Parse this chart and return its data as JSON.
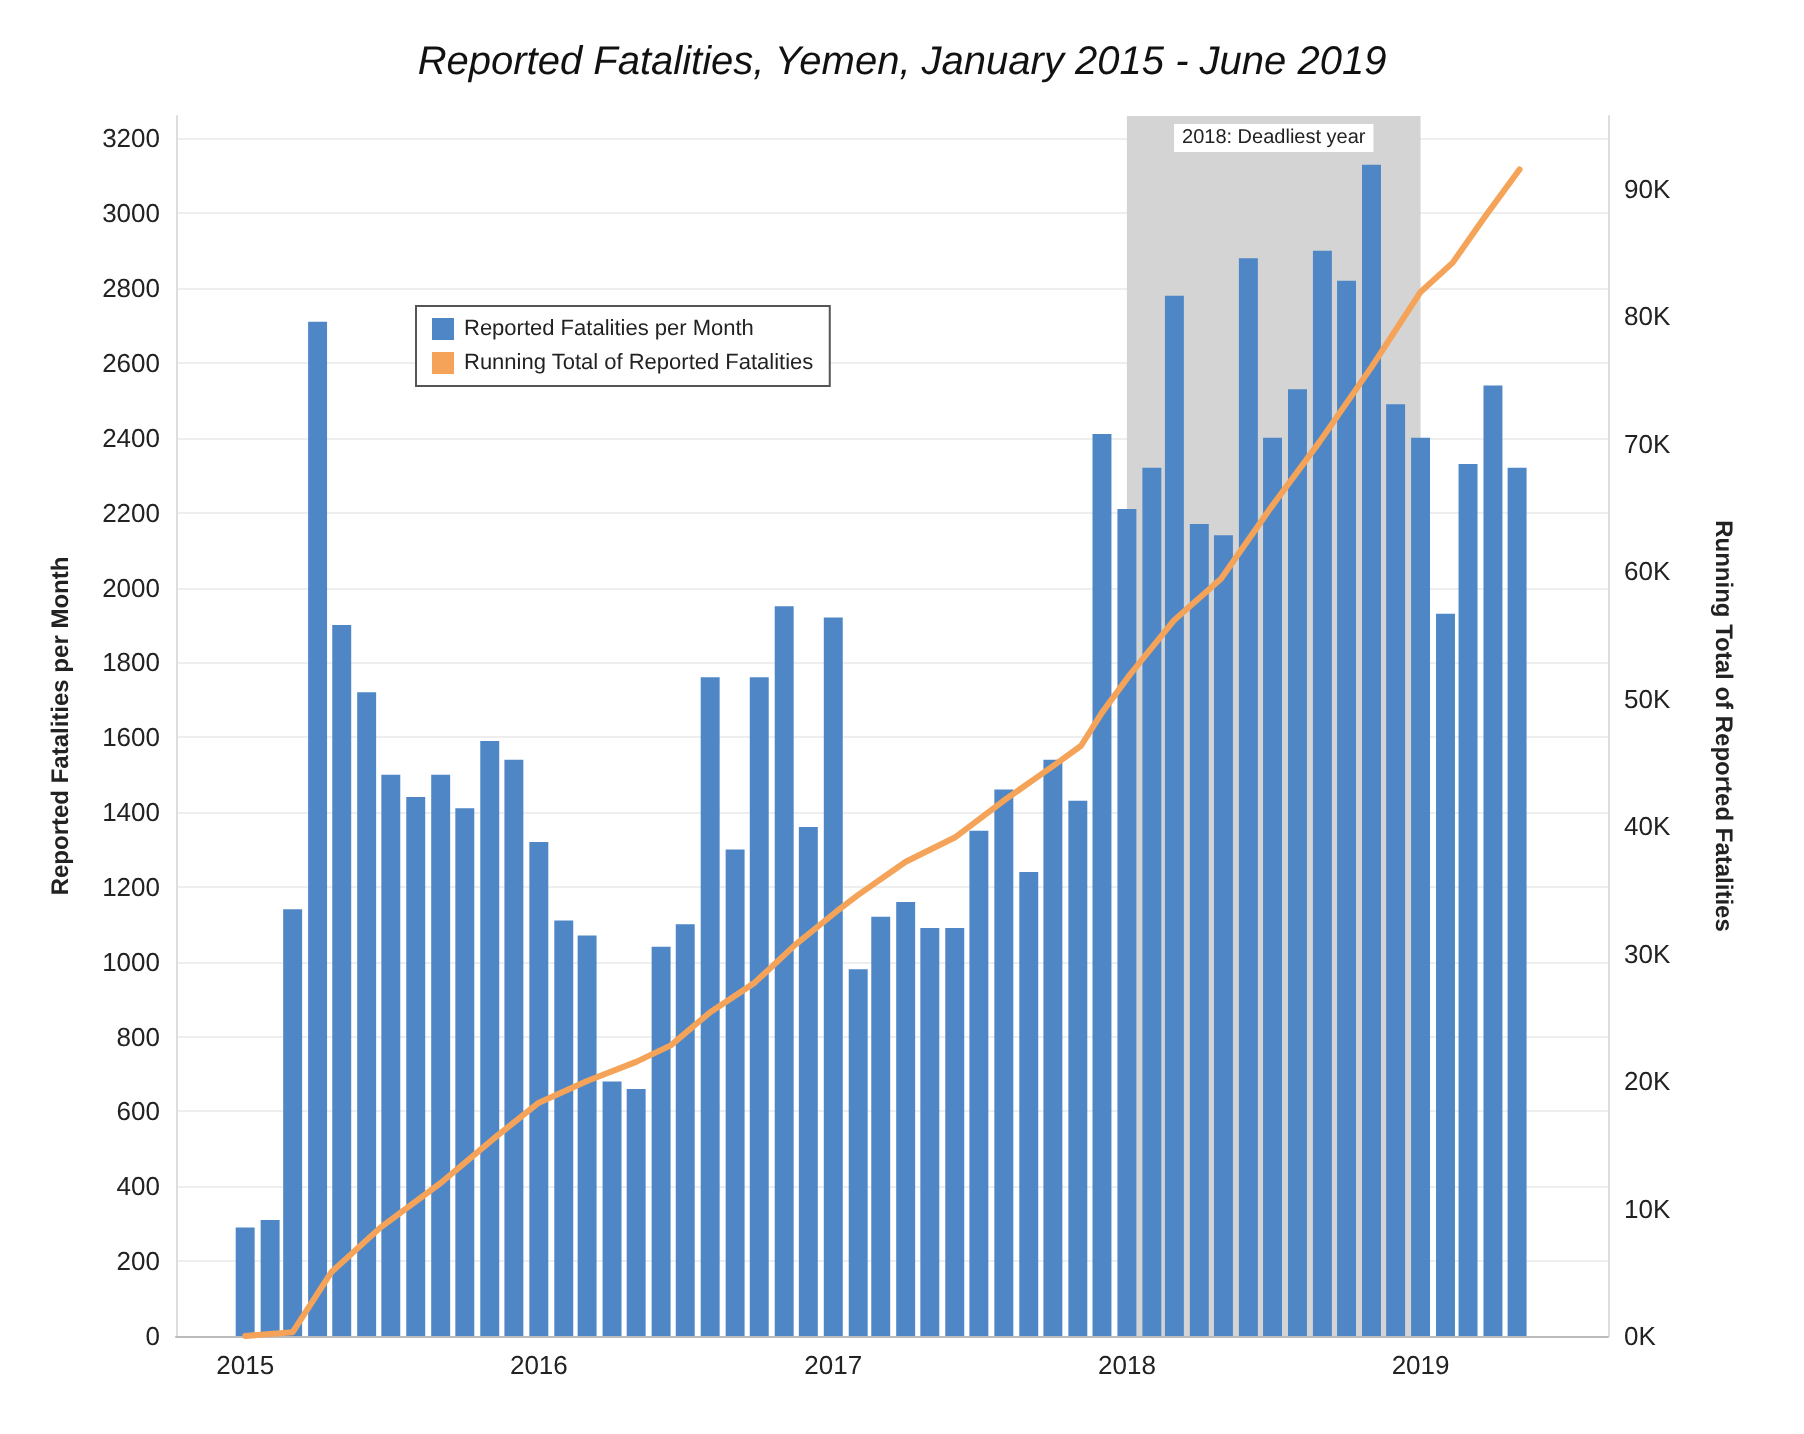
{
  "chart_data": {
    "type": "bar",
    "title": "Reported Fatalities, Yemen, January 2015 - June 2019",
    "ylabel": "Reported Fatalities per Month",
    "y2label": "Running Total of Reported Fatalities",
    "xlim": [
      "2014-10-07",
      "2019-08-22"
    ],
    "xticks": [
      "2015",
      "2016",
      "2017",
      "2018",
      "2019"
    ],
    "ylim": [
      0,
      3260
    ],
    "yticks": [
      0,
      200,
      400,
      600,
      800,
      1000,
      1200,
      1400,
      1600,
      1800,
      2000,
      2200,
      2400,
      2600,
      2800,
      3000,
      3200
    ],
    "y2lim": [
      0,
      95700
    ],
    "y2ticks": [
      {
        "value": 0,
        "label": "0K"
      },
      {
        "value": 10000,
        "label": "10K"
      },
      {
        "value": 20000,
        "label": "20K"
      },
      {
        "value": 30000,
        "label": "30K"
      },
      {
        "value": 40000,
        "label": "40K"
      },
      {
        "value": 50000,
        "label": "50K"
      },
      {
        "value": 60000,
        "label": "60K"
      },
      {
        "value": 70000,
        "label": "70K"
      },
      {
        "value": 80000,
        "label": "80K"
      },
      {
        "value": 90000,
        "label": "90K"
      }
    ],
    "grid": "y",
    "legend": "top left",
    "bands": [
      {
        "axis": "x",
        "from": "2018-01-01",
        "to": "2019-01-01",
        "label": "2018: Deadliest year",
        "color": "#d4d4d4"
      }
    ],
    "series": [
      {
        "name": "Reported Fatalities per Month",
        "color": "#4e86c6",
        "x": [
          "2015-01",
          "2015-02",
          "2015-03",
          "2015-04",
          "2015-05",
          "2015-06",
          "2015-07",
          "2015-08",
          "2015-09",
          "2015-10",
          "2015-11",
          "2015-12",
          "2016-01",
          "2016-02",
          "2016-03",
          "2016-04",
          "2016-05",
          "2016-06",
          "2016-07",
          "2016-08",
          "2016-09",
          "2016-10",
          "2016-11",
          "2016-12",
          "2017-01",
          "2017-02",
          "2017-03",
          "2017-04",
          "2017-05",
          "2017-06",
          "2017-07",
          "2017-08",
          "2017-09",
          "2017-10",
          "2017-11",
          "2017-12",
          "2018-01",
          "2018-02",
          "2018-03",
          "2018-04",
          "2018-05",
          "2018-06",
          "2018-07",
          "2018-08",
          "2018-09",
          "2018-10",
          "2018-11",
          "2018-12",
          "2019-01",
          "2019-02",
          "2019-03",
          "2019-04",
          "2019-05"
        ],
        "values": [
          290,
          310,
          1140,
          2710,
          1900,
          1720,
          1500,
          1440,
          1500,
          1410,
          1590,
          1540,
          1320,
          1110,
          1070,
          680,
          660,
          1040,
          1100,
          1760,
          1300,
          1760,
          1950,
          1360,
          1920,
          980,
          1120,
          1160,
          1090,
          1090,
          1350,
          1460,
          1240,
          1540,
          1430,
          2410,
          2210,
          2320,
          2780,
          2170,
          2140,
          2880,
          2400,
          2530,
          2900,
          2820,
          3130,
          2490,
          2400,
          1930,
          2330,
          2540,
          2320
        ]
      },
      {
        "name": "Running Total of Reported Fatalities",
        "type": "line",
        "axis": "y2",
        "color": "#f4a358",
        "line_style": "solid",
        "marker": "none",
        "x": [
          "2015-01-01",
          "2015-03-01",
          "2015-04-18",
          "2015-06-18",
          "2015-09-01",
          "2015-11-10",
          "2016-01-01",
          "2016-03-01",
          "2016-05-01",
          "2016-06-13",
          "2016-08-01",
          "2016-09-25",
          "2016-11-15",
          "2017-01-05",
          "2017-02-01",
          "2017-04-01",
          "2017-06-01",
          "2017-08-01",
          "2017-10-01",
          "2017-11-05",
          "2017-12-01",
          "2018-01-05",
          "2018-02-28",
          "2018-04-28",
          "2018-06-28",
          "2018-08-28",
          "2018-11-01",
          "2019-01-01",
          "2019-02-10",
          "2019-03-22",
          "2019-05-04"
        ],
        "values": [
          0,
          300,
          5000,
          8500,
          12000,
          15700,
          18300,
          20000,
          21500,
          22800,
          25400,
          27700,
          30700,
          33300,
          34600,
          37200,
          39100,
          42000,
          44700,
          46300,
          48900,
          51900,
          56100,
          59400,
          64900,
          70100,
          76000,
          81900,
          84200,
          87800,
          91500
        ]
      }
    ]
  }
}
